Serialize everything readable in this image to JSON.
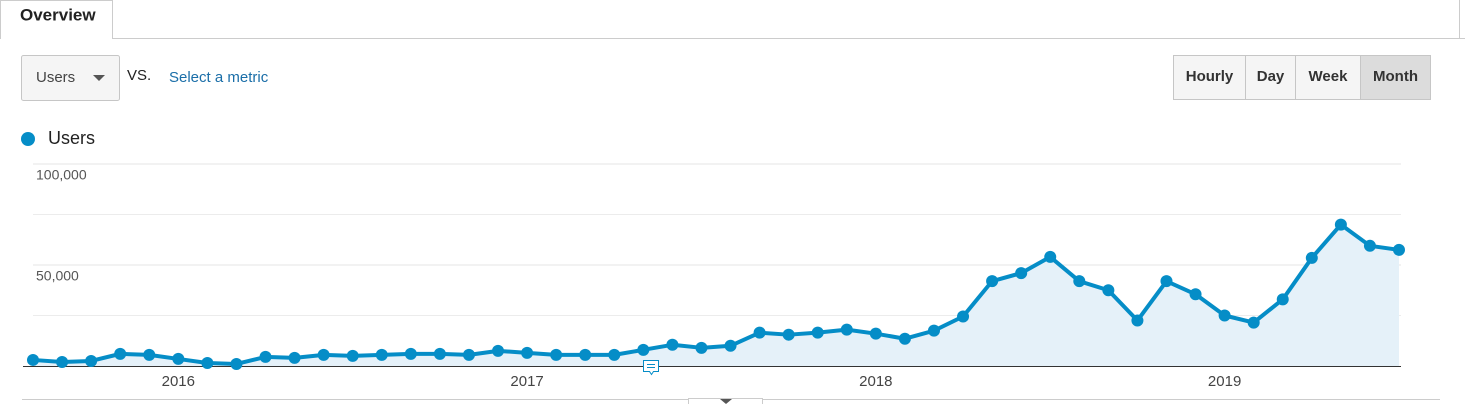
{
  "ui": {
    "tab": "Overview",
    "metric_dropdown": "Users",
    "vs_label": "VS.",
    "select_metric": "Select a metric",
    "buttons": [
      "Hourly",
      "Day",
      "Week",
      "Month"
    ],
    "active_button": "Month"
  },
  "chart_data": {
    "type": "line",
    "categories": [
      null,
      null,
      null,
      null,
      null,
      "2016",
      null,
      null,
      null,
      null,
      null,
      null,
      null,
      null,
      null,
      null,
      null,
      "2017",
      null,
      null,
      null,
      null,
      null,
      null,
      null,
      null,
      null,
      null,
      null,
      "2018",
      null,
      null,
      null,
      null,
      null,
      null,
      null,
      null,
      null,
      null,
      null,
      "2019",
      null,
      null,
      null,
      null,
      null,
      null
    ],
    "series": [
      {
        "name": "Users",
        "color": "#058dc7",
        "values": [
          3000,
          2000,
          2500,
          6000,
          5500,
          3500,
          1500,
          1000,
          4500,
          4000,
          5500,
          5000,
          5500,
          6000,
          6000,
          5500,
          7500,
          6500,
          5500,
          5500,
          5500,
          8000,
          10500,
          9000,
          10000,
          16500,
          15500,
          16500,
          18000,
          16000,
          13500,
          17500,
          24500,
          42000,
          46000,
          54000,
          42000,
          37500,
          22500,
          42000,
          35500,
          25000,
          21500,
          33000,
          53500,
          70000,
          59500,
          57500
        ]
      }
    ],
    "ylim": [
      0,
      100000
    ],
    "yticks": [
      {
        "value": 50000,
        "label": "50,000"
      },
      {
        "value": 100000,
        "label": "100,000"
      }
    ],
    "grid": true,
    "area_fill": "#e5f1f9"
  }
}
